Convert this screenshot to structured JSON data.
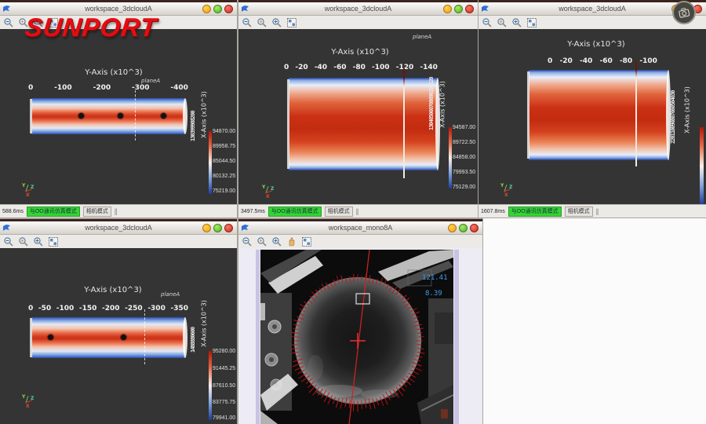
{
  "logo": "SUNPORT",
  "status": {
    "green_badge": "与OO通讯仿真模式",
    "mode_badge": "相机模式",
    "separator": "||"
  },
  "axis_triad": {
    "y": "Y",
    "z": "Z",
    "x": "X"
  },
  "panels3d": [
    {
      "title": "workspace_3dcloudA",
      "time": "588.6ms",
      "y_axis": "Y-Axis (x10^3)",
      "x_axis": "X-Axis (x10^3)",
      "plane": "planeA",
      "ticks": [
        "0",
        "-100",
        "-200",
        "-300",
        "-400"
      ],
      "side_digits": "130399988200",
      "colorbar": [
        "94870.00",
        "89958.75",
        "85044.50",
        "80132.25",
        "75219.00"
      ]
    },
    {
      "title": "workspace_3dcloudA",
      "time": "3497.5ms",
      "y_axis": "Y-Axis (x10^3)",
      "x_axis": "X-Axis (x10^3)",
      "plane": "planeA",
      "ticks": [
        "0",
        "-20",
        "-40",
        "-60",
        "-80",
        "-100",
        "-120",
        "-140"
      ],
      "side_digits": "130405060708090100120",
      "colorbar": [
        "94587.00",
        "89722.50",
        "84858.00",
        "79993.50",
        "75129.00"
      ]
    },
    {
      "title": "workspace_3dcloudA",
      "time": "1607.8ms",
      "y_axis": "Y-Axis (x10^3)",
      "x_axis": "X-Axis (x10^3)",
      "plane": "",
      "ticks": [
        "0",
        "-20",
        "-40",
        "-60",
        "-80",
        "-100"
      ],
      "side_digits": "220110090807060504030",
      "colorbar": []
    },
    {
      "title": "workspace_3dcloudA",
      "time": "",
      "y_axis": "Y-Axis (x10^3)",
      "x_axis": "X-Axis (x10^3)",
      "plane": "planeA",
      "ticks": [
        "0",
        "-50",
        "-100",
        "-150",
        "-200",
        "-250",
        "-300",
        "-350"
      ],
      "side_digits": "1488880600",
      "colorbar": [
        "95280.00",
        "91445.25",
        "87610.50",
        "83775.75",
        "79941.00"
      ]
    }
  ],
  "mono_panel": {
    "title": "workspace_mono8A",
    "measure1": "121.41",
    "measure2": "8.39"
  }
}
